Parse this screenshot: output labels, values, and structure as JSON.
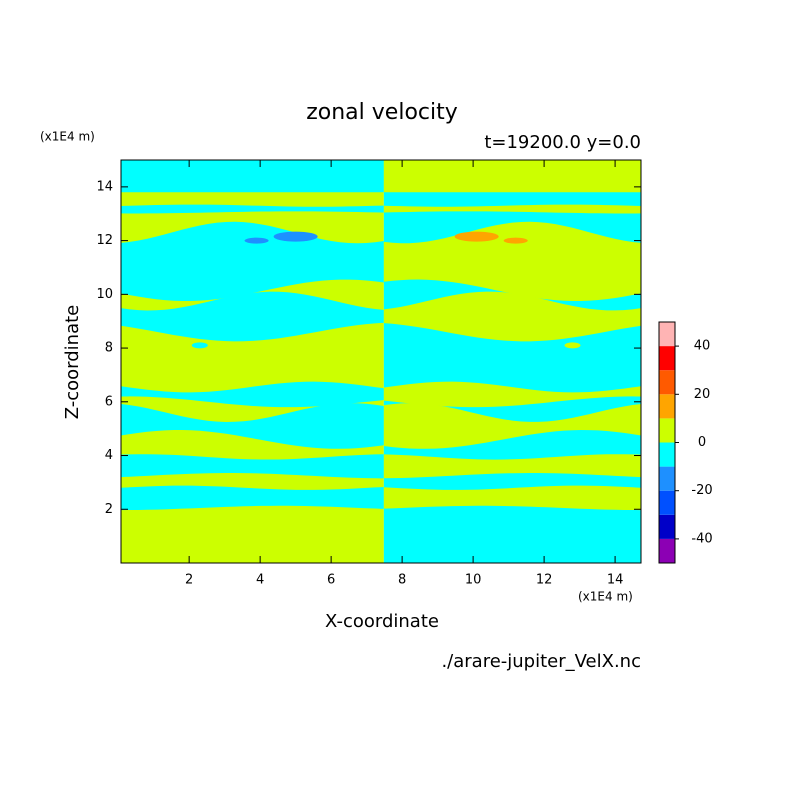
{
  "chart_data": {
    "type": "contour",
    "title": "zonal velocity",
    "subtitle": "t=19200.0 y=0.0",
    "x_label": "X-coordinate",
    "y_label": "Z-coordinate",
    "x_unit": "(x1E4 m)",
    "y_unit": "(x1E4 m)",
    "source": "./arare-jupiter_VelX.nc",
    "xlim": [
      0.08,
      14.73
    ],
    "ylim": [
      0,
      15
    ],
    "xticks": [
      2,
      4,
      6,
      8,
      10,
      12,
      14
    ],
    "yticks": [
      2,
      4,
      6,
      8,
      10,
      12,
      14
    ],
    "colorbar": {
      "levels": [
        -50,
        -40,
        -30,
        -20,
        -10,
        0,
        10,
        20,
        30,
        40,
        50
      ],
      "colors": [
        "#8c00b4",
        "#0000c8",
        "#0050ff",
        "#1e90ff",
        "#00ffff",
        "#ccff00",
        "#ffa500",
        "#ff5a00",
        "#ff0000",
        "#ffb4b4"
      ],
      "ticks": [
        -40,
        -20,
        0,
        20,
        40
      ]
    }
  }
}
